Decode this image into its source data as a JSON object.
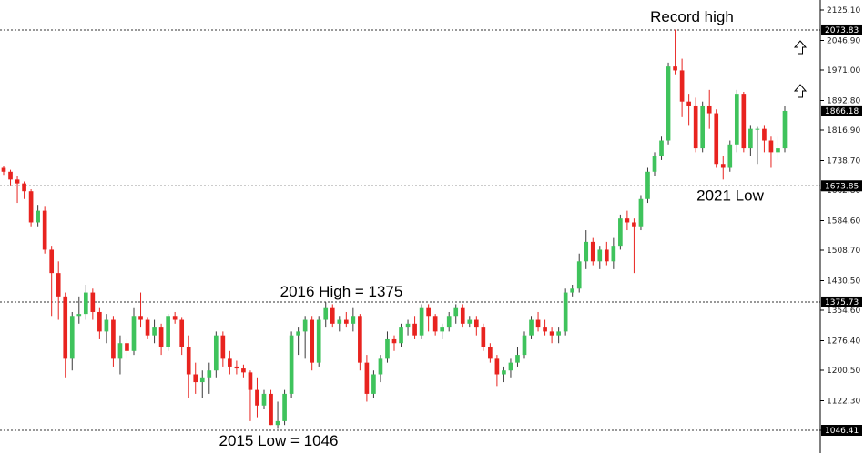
{
  "chart_data": {
    "type": "candlestick",
    "y_ticks": [
      "2125.10",
      "2046.90",
      "1971.00",
      "1892.80",
      "1816.90",
      "1738.70",
      "1662.80",
      "1584.60",
      "1508.70",
      "1430.50",
      "1354.60",
      "1276.40",
      "1200.50",
      "1122.30",
      "1046.41"
    ],
    "ylim": [
      1030,
      2140
    ],
    "levels": [
      {
        "label": "2073.83",
        "value": 2073.83,
        "style": "dotted"
      },
      {
        "label": "1673.85",
        "value": 1673.85,
        "style": "dotted"
      },
      {
        "label": "1375.73",
        "value": 1375.73,
        "style": "dotted"
      },
      {
        "label": "1046.41",
        "value": 1046.41,
        "style": "dotted"
      }
    ],
    "current_price": {
      "label": "1866.18",
      "value": 1866.18
    },
    "annotations": [
      {
        "text": "Record high",
        "anchor_price": 2073.83,
        "position": "above"
      },
      {
        "text": "2021 Low",
        "anchor_price": 1673.85,
        "position": "below"
      },
      {
        "text": "2016 High = 1375",
        "anchor_price": 1375.73,
        "position": "above"
      },
      {
        "text": "2015 Low = 1046",
        "anchor_price": 1046.41,
        "position": "below"
      }
    ],
    "colors": {
      "up": "#3fc35c",
      "down": "#e8231f",
      "wick": "#000000",
      "tag": "#000000"
    },
    "candles": [
      [
        1720,
        1724,
        1702,
        1710
      ],
      [
        1710,
        1715,
        1675,
        1690
      ],
      [
        1690,
        1700,
        1630,
        1680
      ],
      [
        1680,
        1685,
        1640,
        1660
      ],
      [
        1660,
        1665,
        1570,
        1580
      ],
      [
        1580,
        1625,
        1570,
        1610
      ],
      [
        1610,
        1620,
        1500,
        1510
      ],
      [
        1510,
        1520,
        1340,
        1450
      ],
      [
        1450,
        1480,
        1330,
        1390
      ],
      [
        1390,
        1400,
        1180,
        1230
      ],
      [
        1230,
        1350,
        1200,
        1340
      ],
      [
        1340,
        1390,
        1320,
        1345
      ],
      [
        1345,
        1420,
        1330,
        1400
      ],
      [
        1400,
        1410,
        1330,
        1350
      ],
      [
        1350,
        1360,
        1280,
        1300
      ],
      [
        1300,
        1345,
        1270,
        1330
      ],
      [
        1330,
        1340,
        1210,
        1230
      ],
      [
        1230,
        1290,
        1190,
        1270
      ],
      [
        1270,
        1280,
        1230,
        1250
      ],
      [
        1250,
        1360,
        1240,
        1340
      ],
      [
        1340,
        1400,
        1310,
        1330
      ],
      [
        1330,
        1335,
        1280,
        1290
      ],
      [
        1290,
        1330,
        1270,
        1310
      ],
      [
        1310,
        1320,
        1240,
        1260
      ],
      [
        1260,
        1345,
        1250,
        1340
      ],
      [
        1340,
        1350,
        1320,
        1330
      ],
      [
        1330,
        1335,
        1240,
        1260
      ],
      [
        1260,
        1290,
        1130,
        1190
      ],
      [
        1190,
        1220,
        1140,
        1170
      ],
      [
        1170,
        1200,
        1130,
        1180
      ],
      [
        1180,
        1220,
        1140,
        1200
      ],
      [
        1200,
        1300,
        1180,
        1290
      ],
      [
        1290,
        1300,
        1210,
        1230
      ],
      [
        1230,
        1250,
        1190,
        1210
      ],
      [
        1210,
        1225,
        1190,
        1205
      ],
      [
        1205,
        1215,
        1180,
        1195
      ],
      [
        1195,
        1200,
        1070,
        1150
      ],
      [
        1150,
        1180,
        1080,
        1110
      ],
      [
        1110,
        1150,
        1100,
        1140
      ],
      [
        1140,
        1150,
        1060,
        1060
      ],
      [
        1060,
        1120,
        1050,
        1070
      ],
      [
        1070,
        1150,
        1060,
        1140
      ],
      [
        1140,
        1300,
        1130,
        1290
      ],
      [
        1290,
        1310,
        1240,
        1300
      ],
      [
        1300,
        1340,
        1230,
        1330
      ],
      [
        1330,
        1340,
        1200,
        1220
      ],
      [
        1220,
        1340,
        1210,
        1330
      ],
      [
        1330,
        1375,
        1310,
        1360
      ],
      [
        1360,
        1370,
        1310,
        1320
      ],
      [
        1320,
        1340,
        1300,
        1330
      ],
      [
        1330,
        1350,
        1310,
        1320
      ],
      [
        1320,
        1360,
        1300,
        1340
      ],
      [
        1340,
        1345,
        1200,
        1220
      ],
      [
        1220,
        1240,
        1120,
        1140
      ],
      [
        1140,
        1200,
        1130,
        1190
      ],
      [
        1190,
        1240,
        1170,
        1230
      ],
      [
        1230,
        1300,
        1220,
        1280
      ],
      [
        1280,
        1290,
        1250,
        1270
      ],
      [
        1270,
        1320,
        1260,
        1310
      ],
      [
        1310,
        1330,
        1290,
        1320
      ],
      [
        1320,
        1340,
        1280,
        1290
      ],
      [
        1290,
        1370,
        1280,
        1360
      ],
      [
        1360,
        1370,
        1300,
        1340
      ],
      [
        1340,
        1345,
        1290,
        1300
      ],
      [
        1300,
        1320,
        1280,
        1310
      ],
      [
        1310,
        1350,
        1300,
        1340
      ],
      [
        1340,
        1370,
        1320,
        1360
      ],
      [
        1360,
        1370,
        1310,
        1320
      ],
      [
        1320,
        1340,
        1310,
        1330
      ],
      [
        1330,
        1340,
        1290,
        1310
      ],
      [
        1310,
        1320,
        1250,
        1260
      ],
      [
        1260,
        1270,
        1220,
        1230
      ],
      [
        1230,
        1240,
        1160,
        1190
      ],
      [
        1190,
        1210,
        1170,
        1200
      ],
      [
        1200,
        1230,
        1180,
        1220
      ],
      [
        1220,
        1260,
        1210,
        1240
      ],
      [
        1240,
        1300,
        1230,
        1290
      ],
      [
        1290,
        1340,
        1280,
        1330
      ],
      [
        1330,
        1350,
        1300,
        1310
      ],
      [
        1310,
        1330,
        1290,
        1300
      ],
      [
        1300,
        1310,
        1270,
        1290
      ],
      [
        1290,
        1310,
        1270,
        1300
      ],
      [
        1300,
        1410,
        1290,
        1400
      ],
      [
        1400,
        1420,
        1390,
        1410
      ],
      [
        1410,
        1500,
        1400,
        1480
      ],
      [
        1480,
        1560,
        1460,
        1530
      ],
      [
        1530,
        1540,
        1470,
        1480
      ],
      [
        1480,
        1520,
        1460,
        1510
      ],
      [
        1510,
        1530,
        1470,
        1480
      ],
      [
        1480,
        1540,
        1460,
        1520
      ],
      [
        1520,
        1600,
        1510,
        1590
      ],
      [
        1590,
        1610,
        1560,
        1580
      ],
      [
        1580,
        1590,
        1450,
        1570
      ],
      [
        1570,
        1650,
        1560,
        1640
      ],
      [
        1640,
        1720,
        1630,
        1710
      ],
      [
        1710,
        1760,
        1700,
        1750
      ],
      [
        1750,
        1800,
        1740,
        1790
      ],
      [
        1790,
        1990,
        1780,
        1980
      ],
      [
        1980,
        2075,
        1960,
        1970
      ],
      [
        1970,
        2000,
        1850,
        1890
      ],
      [
        1890,
        1910,
        1830,
        1880
      ],
      [
        1880,
        1900,
        1760,
        1770
      ],
      [
        1770,
        1890,
        1760,
        1880
      ],
      [
        1880,
        1920,
        1820,
        1860
      ],
      [
        1860,
        1870,
        1720,
        1730
      ],
      [
        1730,
        1750,
        1690,
        1720
      ],
      [
        1720,
        1790,
        1710,
        1780
      ],
      [
        1780,
        1920,
        1760,
        1910
      ],
      [
        1910,
        1915,
        1760,
        1770
      ],
      [
        1770,
        1830,
        1750,
        1820
      ],
      [
        1820,
        1825,
        1730,
        1820
      ],
      [
        1820,
        1830,
        1760,
        1790
      ],
      [
        1790,
        1800,
        1720,
        1760
      ],
      [
        1760,
        1800,
        1740,
        1770
      ],
      [
        1770,
        1880,
        1760,
        1866
      ]
    ]
  }
}
